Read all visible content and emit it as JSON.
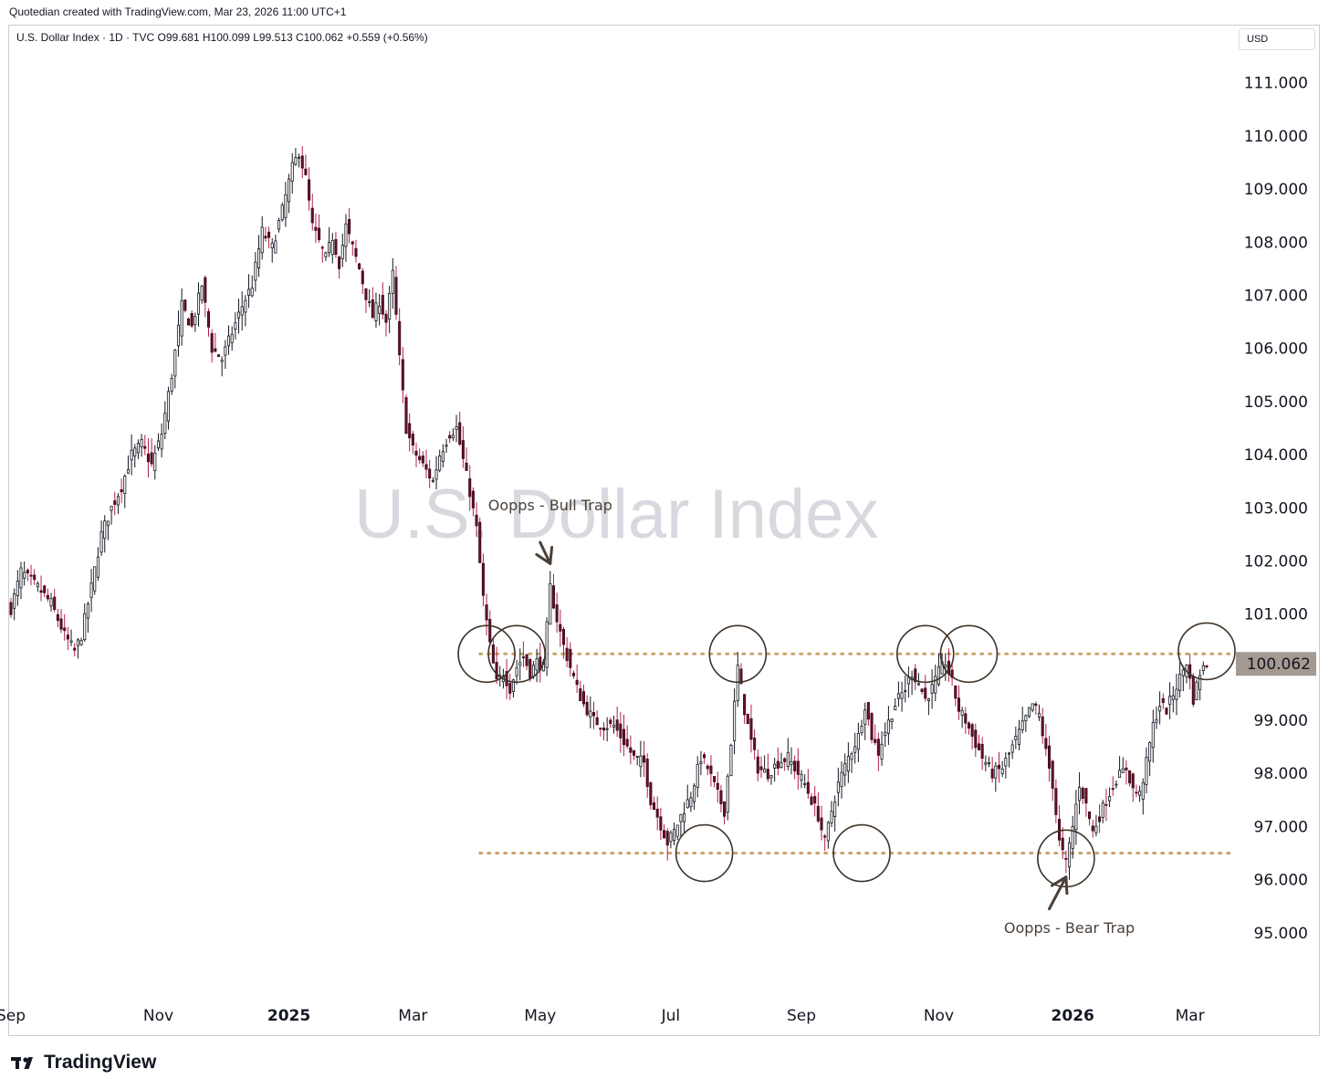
{
  "header": {
    "credit": "Quotedian created with TradingView.com, Mar 23, 2026 11:00 UTC+1"
  },
  "legend": {
    "symbol_line": "U.S. Dollar Index · 1D · TVC  O99.681  H100.099  L99.513  C100.062  +0.559 (+0.56%)"
  },
  "currency": "USD",
  "watermark": "U.S. Dollar Index",
  "footer": {
    "brand": "TradingView"
  },
  "chart_data": {
    "type": "candlestick",
    "title": "U.S. Dollar Index",
    "interval": "1D",
    "y_ticks": [
      "111.000",
      "110.000",
      "109.000",
      "108.000",
      "107.000",
      "106.000",
      "105.000",
      "104.000",
      "103.000",
      "102.000",
      "101.000",
      "99.000",
      "98.000",
      "97.000",
      "96.000",
      "95.000"
    ],
    "y_tick_values": [
      111,
      110,
      109,
      108,
      107,
      106,
      105,
      104,
      103,
      102,
      101,
      99,
      98,
      97,
      96,
      95
    ],
    "ylim": [
      94.0,
      111.7
    ],
    "x_ticks": [
      {
        "label": "Sep",
        "idx": 0,
        "bold": false
      },
      {
        "label": "Nov",
        "idx": 44,
        "bold": false
      },
      {
        "label": "2025",
        "idx": 83,
        "bold": true
      },
      {
        "label": "Mar",
        "idx": 120,
        "bold": false
      },
      {
        "label": "May",
        "idx": 158,
        "bold": false
      },
      {
        "label": "Jul",
        "idx": 197,
        "bold": false
      },
      {
        "label": "Sep",
        "idx": 236,
        "bold": false
      },
      {
        "label": "Nov",
        "idx": 277,
        "bold": false
      },
      {
        "label": "2026",
        "idx": 317,
        "bold": true
      },
      {
        "label": "Mar",
        "idx": 352,
        "bold": false
      }
    ],
    "anchors": [
      [
        0,
        101.1
      ],
      [
        3,
        101.8
      ],
      [
        8,
        101.5
      ],
      [
        12,
        101.2
      ],
      [
        16,
        100.6
      ],
      [
        19,
        100.3
      ],
      [
        21,
        100.6
      ],
      [
        24,
        101.5
      ],
      [
        27,
        102.5
      ],
      [
        30,
        103.0
      ],
      [
        33,
        103.4
      ],
      [
        36,
        104.0
      ],
      [
        39,
        104.2
      ],
      [
        42,
        103.8
      ],
      [
        45,
        104.4
      ],
      [
        48,
        105.5
      ],
      [
        51,
        106.8
      ],
      [
        54,
        106.4
      ],
      [
        57,
        107.2
      ],
      [
        60,
        106.0
      ],
      [
        63,
        105.8
      ],
      [
        66,
        106.3
      ],
      [
        69,
        106.8
      ],
      [
        72,
        107.2
      ],
      [
        75,
        108.2
      ],
      [
        78,
        107.9
      ],
      [
        81,
        108.6
      ],
      [
        84,
        109.4
      ],
      [
        86,
        109.7
      ],
      [
        88,
        109.2
      ],
      [
        90,
        108.3
      ],
      [
        92,
        108.0
      ],
      [
        94,
        107.7
      ],
      [
        96,
        108.1
      ],
      [
        98,
        107.6
      ],
      [
        100,
        108.3
      ],
      [
        102,
        107.9
      ],
      [
        104,
        107.5
      ],
      [
        106,
        107.0
      ],
      [
        108,
        106.6
      ],
      [
        110,
        106.9
      ],
      [
        112,
        106.5
      ],
      [
        114,
        107.4
      ],
      [
        116,
        105.8
      ],
      [
        118,
        104.5
      ],
      [
        120,
        104.1
      ],
      [
        122,
        103.9
      ],
      [
        124,
        103.7
      ],
      [
        126,
        103.5
      ],
      [
        128,
        104.0
      ],
      [
        131,
        104.4
      ],
      [
        133,
        104.5
      ],
      [
        135,
        103.9
      ],
      [
        137,
        103.3
      ],
      [
        139,
        102.6
      ],
      [
        141,
        101.3
      ],
      [
        143,
        100.4
      ],
      [
        145,
        99.7
      ],
      [
        147,
        99.9
      ],
      [
        149,
        99.6
      ],
      [
        151,
        100.0
      ],
      [
        153,
        100.2
      ],
      [
        155,
        99.9
      ],
      [
        157,
        100.1
      ],
      [
        159,
        100.0
      ],
      [
        161,
        101.5
      ],
      [
        163,
        100.9
      ],
      [
        165,
        100.4
      ],
      [
        167,
        100.0
      ],
      [
        169,
        99.6
      ],
      [
        171,
        99.3
      ],
      [
        174,
        99.0
      ],
      [
        177,
        98.9
      ],
      [
        180,
        98.9
      ],
      [
        183,
        98.6
      ],
      [
        186,
        98.3
      ],
      [
        189,
        98.2
      ],
      [
        191,
        97.5
      ],
      [
        193,
        97.2
      ],
      [
        196,
        96.7
      ],
      [
        198,
        96.9
      ],
      [
        200,
        97.2
      ],
      [
        203,
        97.6
      ],
      [
        206,
        98.3
      ],
      [
        208,
        98.1
      ],
      [
        211,
        97.6
      ],
      [
        213,
        97.3
      ],
      [
        215,
        98.6
      ],
      [
        217,
        100.0
      ],
      [
        219,
        99.2
      ],
      [
        221,
        98.6
      ],
      [
        223,
        98.1
      ],
      [
        226,
        98.0
      ],
      [
        229,
        98.2
      ],
      [
        232,
        98.3
      ],
      [
        235,
        98.0
      ],
      [
        237,
        97.8
      ],
      [
        239,
        97.5
      ],
      [
        241,
        97.2
      ],
      [
        243,
        96.7
      ],
      [
        245,
        97.3
      ],
      [
        247,
        97.8
      ],
      [
        250,
        98.3
      ],
      [
        253,
        98.7
      ],
      [
        255,
        99.3
      ],
      [
        257,
        98.7
      ],
      [
        259,
        98.4
      ],
      [
        261,
        98.8
      ],
      [
        264,
        99.3
      ],
      [
        267,
        99.6
      ],
      [
        269,
        99.9
      ],
      [
        271,
        99.7
      ],
      [
        273,
        99.4
      ],
      [
        275,
        99.6
      ],
      [
        277,
        99.9
      ],
      [
        279,
        100.1
      ],
      [
        281,
        99.7
      ],
      [
        283,
        99.2
      ],
      [
        285,
        99.0
      ],
      [
        287,
        98.7
      ],
      [
        290,
        98.3
      ],
      [
        293,
        98.0
      ],
      [
        296,
        98.1
      ],
      [
        299,
        98.5
      ],
      [
        302,
        98.9
      ],
      [
        305,
        99.3
      ],
      [
        307,
        99.1
      ],
      [
        309,
        98.4
      ],
      [
        311,
        97.8
      ],
      [
        313,
        96.7
      ],
      [
        315,
        96.3
      ],
      [
        317,
        97.0
      ],
      [
        319,
        97.8
      ],
      [
        321,
        97.4
      ],
      [
        323,
        96.9
      ],
      [
        325,
        97.2
      ],
      [
        327,
        97.5
      ],
      [
        330,
        97.9
      ],
      [
        333,
        98.1
      ],
      [
        335,
        97.7
      ],
      [
        337,
        97.6
      ],
      [
        339,
        98.2
      ],
      [
        341,
        98.9
      ],
      [
        343,
        99.3
      ],
      [
        345,
        99.2
      ],
      [
        347,
        99.5
      ],
      [
        349,
        99.8
      ],
      [
        351,
        100.1
      ],
      [
        353,
        99.4
      ],
      [
        355,
        99.9
      ],
      [
        357,
        100.06
      ]
    ],
    "resistance": 100.25,
    "support": 96.5,
    "last_price": "100.062",
    "circles": [
      {
        "idx": 142,
        "price": 100.25
      },
      {
        "idx": 151,
        "price": 100.25
      },
      {
        "idx": 207,
        "price": 96.5
      },
      {
        "idx": 217,
        "price": 100.25
      },
      {
        "idx": 254,
        "price": 96.5
      },
      {
        "idx": 273,
        "price": 100.25
      },
      {
        "idx": 286,
        "price": 100.25
      },
      {
        "idx": 315,
        "price": 96.4
      },
      {
        "idx": 357,
        "price": 100.3
      }
    ],
    "annotations": [
      {
        "text": "Oopps - Bull Trap",
        "idx": 161,
        "price": 102.95,
        "arrow_from": [
          158,
          102.35
        ],
        "arrow_to": [
          161,
          101.95
        ]
      },
      {
        "text": "Oopps - Bear Trap",
        "idx": 316,
        "price": 95.0,
        "arrow_from": [
          310,
          95.45
        ],
        "arrow_to": [
          315,
          96.05
        ]
      }
    ]
  }
}
